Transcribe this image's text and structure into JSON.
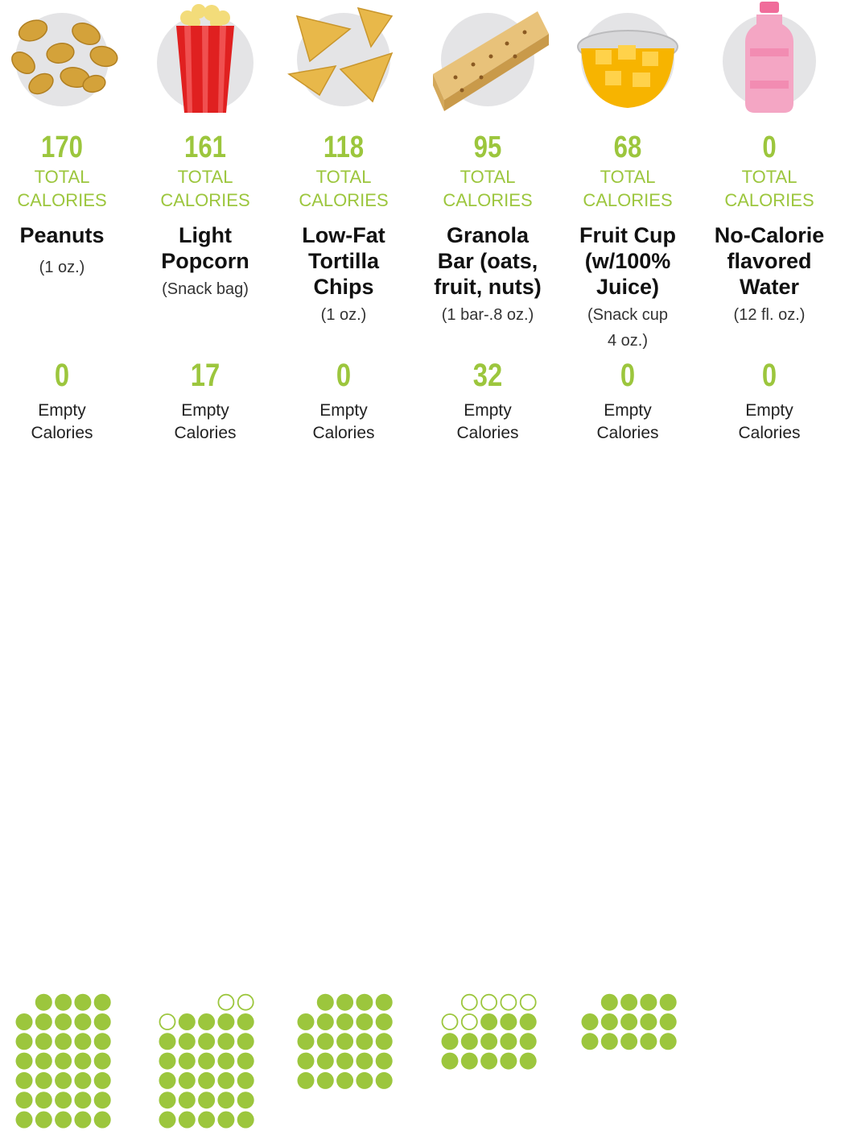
{
  "chart_data": {
    "type": "pictogram",
    "colors": {
      "dot": "#9cc63d",
      "empty_dot_outline": "#9cc63d",
      "icon_circle": "#e4e4e6"
    },
    "dots_per_row": 5,
    "items": [
      {
        "icon": "peanuts-icon",
        "total_calories": 170,
        "total_label": "TOTAL\nCALORIES",
        "name": "Peanuts",
        "serving": "(1 oz.)",
        "empty_calories": 0,
        "empty_label": "Empty\nCalories"
      },
      {
        "icon": "popcorn-icon",
        "total_calories": 161,
        "total_label": "TOTAL\nCALORIES",
        "name": "Light\nPopcorn",
        "serving": "(Snack bag)",
        "empty_calories": 17,
        "empty_label": "Empty\nCalories"
      },
      {
        "icon": "tortilla-chips-icon",
        "total_calories": 118,
        "total_label": "TOTAL\nCALORIES",
        "name": "Low-Fat\nTortilla\nChips",
        "serving": "(1 oz.)",
        "empty_calories": 0,
        "empty_label": "Empty\nCalories"
      },
      {
        "icon": "granola-bar-icon",
        "total_calories": 95,
        "total_label": "TOTAL\nCALORIES",
        "name": "Granola\nBar (oats,\nfruit, nuts)",
        "serving": "(1 bar-.8 oz.)",
        "empty_calories": 32,
        "empty_label": "Empty\nCalories"
      },
      {
        "icon": "fruit-cup-icon",
        "total_calories": 68,
        "total_label": "TOTAL\nCALORIES",
        "name": "Fruit Cup\n(w/100%\nJuice)",
        "serving": "(Snack cup\n4 oz.)",
        "empty_calories": 0,
        "empty_label": "Empty\nCalories"
      },
      {
        "icon": "water-bottle-icon",
        "total_calories": 0,
        "total_label": "TOTAL\nCALORIES",
        "name": "No-Calorie\nflavored\nWater",
        "serving": "(12 fl. oz.)",
        "empty_calories": 0,
        "empty_label": "Empty\nCalories"
      }
    ]
  }
}
